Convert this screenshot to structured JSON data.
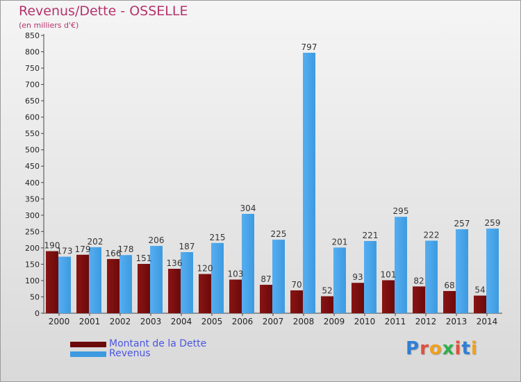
{
  "title": "Revenus/Dette - OSSELLE",
  "subtitle": "(en milliers d'€)",
  "colors": {
    "dette": "#6b0a0a",
    "revenus": "#3d9ae0"
  },
  "legend": {
    "dette_label": "Montant de la Dette",
    "revenus_label": "Revenus"
  },
  "logo": {
    "text": "Proxiti",
    "icon": "proxiti-logo"
  },
  "chart_data": {
    "type": "bar",
    "categories": [
      "2000",
      "2001",
      "2002",
      "2003",
      "2004",
      "2005",
      "2006",
      "2007",
      "2008",
      "2009",
      "2010",
      "2011",
      "2012",
      "2013",
      "2014"
    ],
    "series": [
      {
        "name": "Montant de la Dette",
        "values": [
          190,
          179,
          166,
          151,
          136,
          120,
          103,
          87,
          70,
          52,
          93,
          101,
          82,
          68,
          54
        ]
      },
      {
        "name": "Revenus",
        "values": [
          173,
          202,
          178,
          206,
          187,
          215,
          304,
          225,
          797,
          201,
          221,
          295,
          222,
          257,
          259
        ]
      }
    ],
    "ylim": [
      0,
      850
    ],
    "yticks": [
      0,
      50,
      100,
      150,
      200,
      250,
      300,
      350,
      400,
      450,
      500,
      550,
      600,
      650,
      700,
      750,
      800,
      850
    ],
    "grid": false,
    "legend_position": "bottom-left"
  }
}
